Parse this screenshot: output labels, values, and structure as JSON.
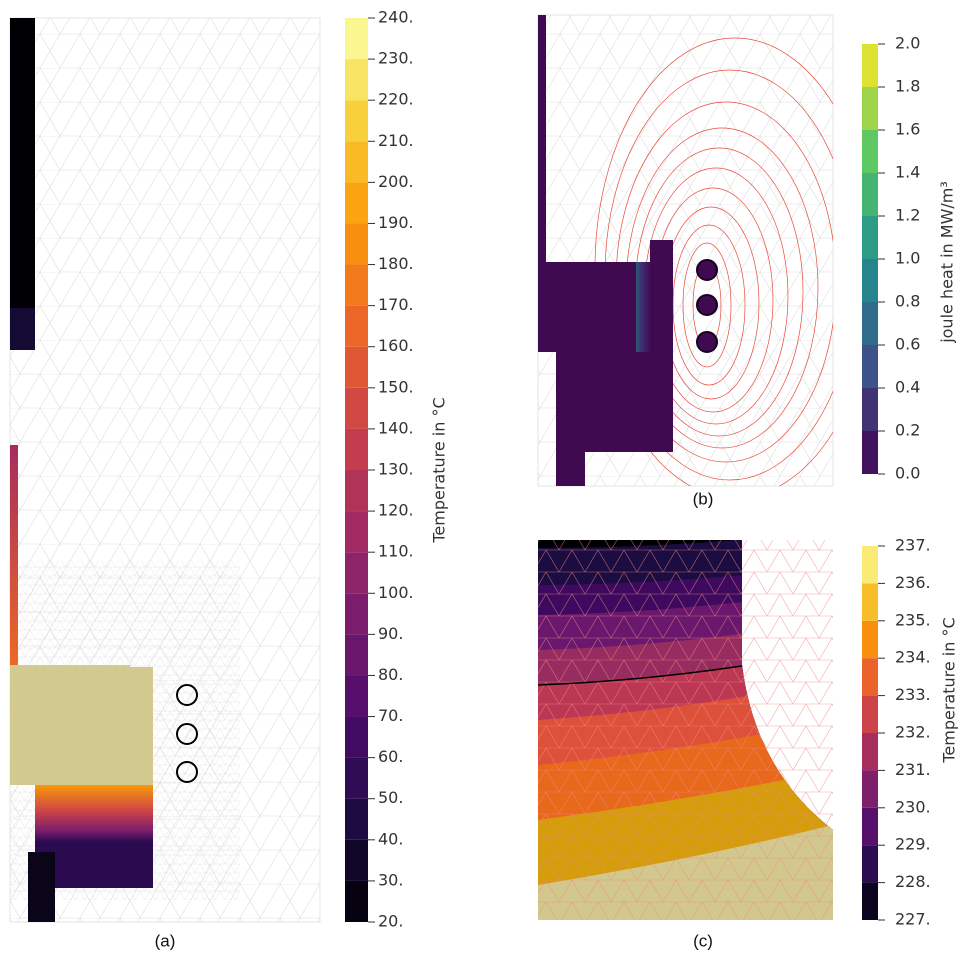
{
  "panels": [
    {
      "label": "(a)",
      "colorbar": {
        "title": "Temperature in °C",
        "lim": [
          20,
          240
        ],
        "ticks": [
          {
            "value": 20,
            "label": "20."
          },
          {
            "value": 30,
            "label": "30."
          },
          {
            "value": 40,
            "label": "40."
          },
          {
            "value": 50,
            "label": "50."
          },
          {
            "value": 60,
            "label": "60."
          },
          {
            "value": 70,
            "label": "70."
          },
          {
            "value": 80,
            "label": "80."
          },
          {
            "value": 90,
            "label": "90."
          },
          {
            "value": 100,
            "label": "100."
          },
          {
            "value": 110,
            "label": "110."
          },
          {
            "value": 120,
            "label": "120."
          },
          {
            "value": 130,
            "label": "130."
          },
          {
            "value": 140,
            "label": "140."
          },
          {
            "value": 150,
            "label": "150."
          },
          {
            "value": 160,
            "label": "160."
          },
          {
            "value": 170,
            "label": "170."
          },
          {
            "value": 180,
            "label": "180."
          },
          {
            "value": 190,
            "label": "190."
          },
          {
            "value": 200,
            "label": "200."
          },
          {
            "value": 210,
            "label": "210."
          },
          {
            "value": 220,
            "label": "220."
          },
          {
            "value": 230,
            "label": "230."
          },
          {
            "value": 240,
            "label": "240."
          }
        ],
        "colormap": [
          "#000004",
          "#1b0c41",
          "#4a0c6b",
          "#781c6d",
          "#a52c60",
          "#cf4446",
          "#ed6925",
          "#fb9b06",
          "#f7d13d",
          "#fcffa4"
        ]
      }
    },
    {
      "label": "(b)",
      "colorbar": {
        "title": "joule heat in MW/m³",
        "lim": [
          0,
          2
        ],
        "ticks": [
          {
            "value": 0,
            "label": "0.0"
          },
          0.2,
          0.4,
          0.6,
          0.8,
          {
            "value": 1,
            "label": "1.0"
          },
          1.2,
          1.4,
          1.6,
          1.8,
          {
            "value": 2,
            "label": "2.0"
          }
        ],
        "colormap": [
          "#440154",
          "#3b528b",
          "#21918c",
          "#5ec962",
          "#fde725"
        ]
      }
    },
    {
      "label": "(c)",
      "colorbar": {
        "title": "Temperature in °C",
        "lim": [
          227,
          237
        ],
        "ticks": [
          {
            "value": 227,
            "label": "227."
          },
          {
            "value": 228,
            "label": "228."
          },
          {
            "value": 229,
            "label": "229."
          },
          {
            "value": 230,
            "label": "230."
          },
          {
            "value": 231,
            "label": "231."
          },
          {
            "value": 232,
            "label": "232."
          },
          {
            "value": 233,
            "label": "233."
          },
          {
            "value": 234,
            "label": "234."
          },
          {
            "value": 235,
            "label": "235."
          },
          {
            "value": 236,
            "label": "236."
          },
          {
            "value": 237,
            "label": "237."
          }
        ],
        "colormap": [
          "#000004",
          "#1b0c41",
          "#4a0c6b",
          "#781c6d",
          "#a52c60",
          "#cf4446",
          "#ed6925",
          "#fb9b06",
          "#f7d13d",
          "#fcffa4"
        ]
      }
    }
  ]
}
